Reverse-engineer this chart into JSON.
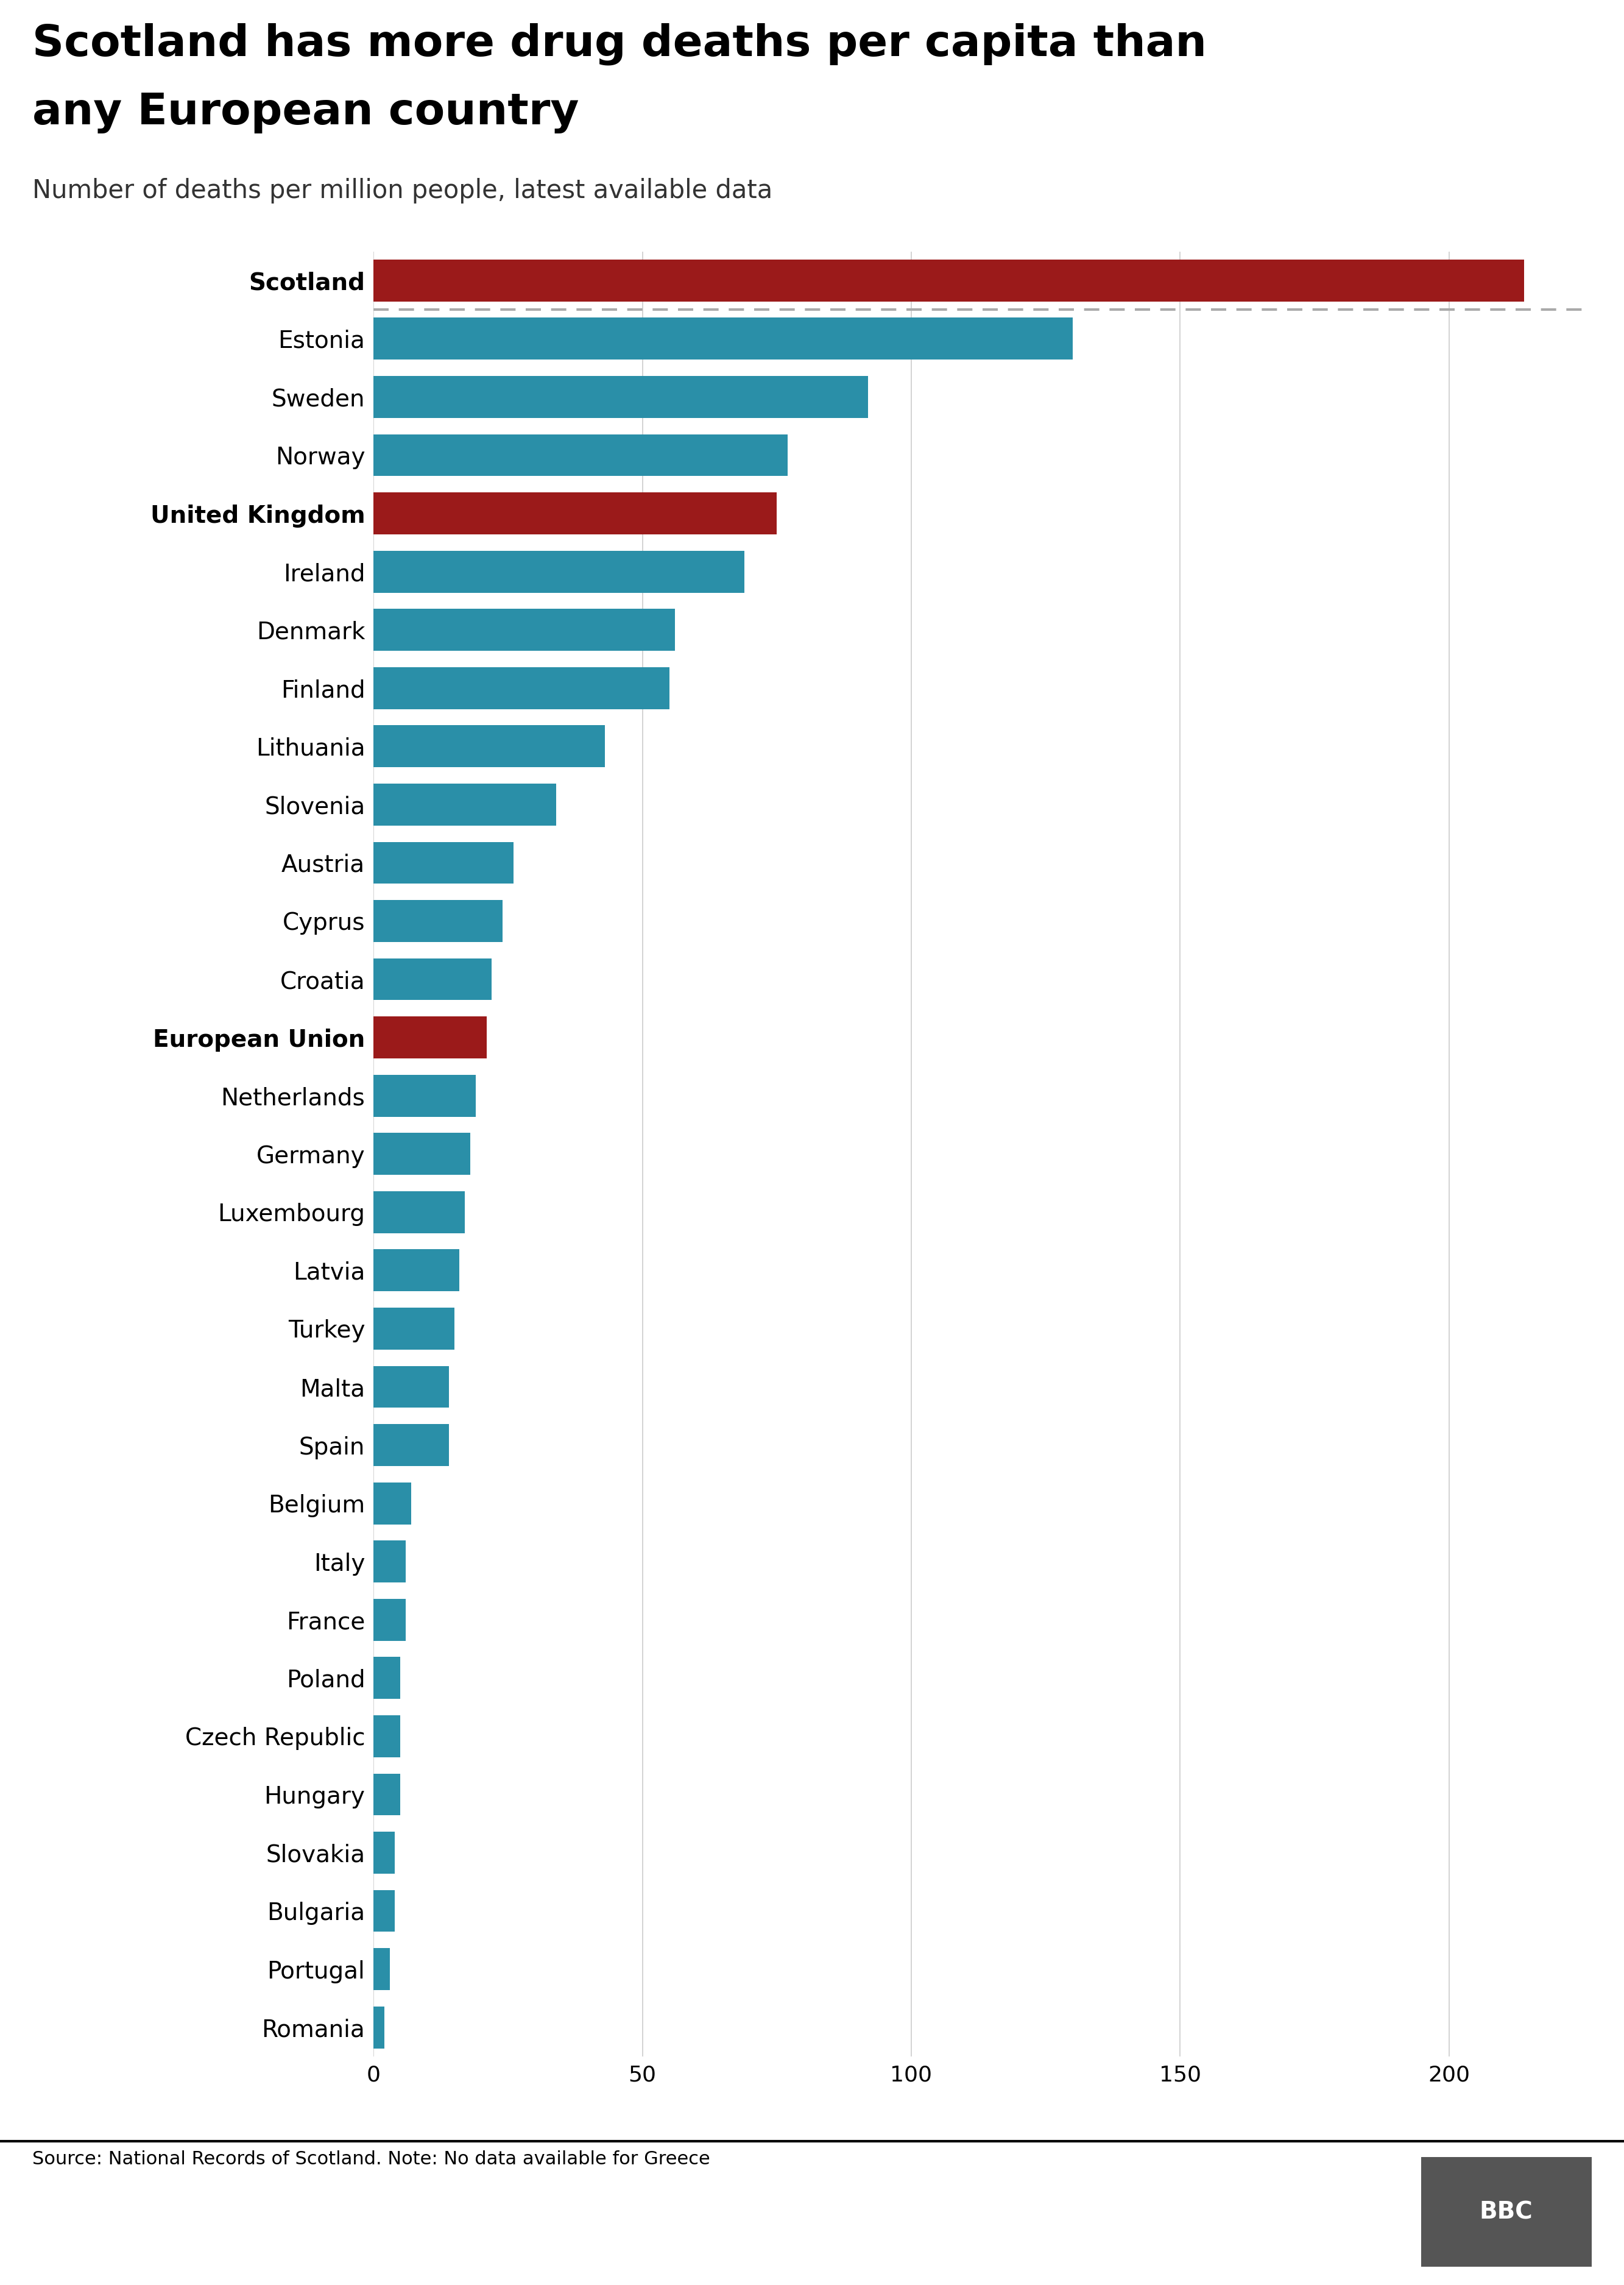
{
  "title_line1": "Scotland has more drug deaths per capita than",
  "title_line2": "any European country",
  "subtitle": "Number of deaths per million people, latest available data",
  "source": "Source: National Records of Scotland. Note: No data available for Greece",
  "categories": [
    "Romania",
    "Portugal",
    "Bulgaria",
    "Slovakia",
    "Hungary",
    "Czech Republic",
    "Poland",
    "France",
    "Italy",
    "Belgium",
    "Spain",
    "Malta",
    "Turkey",
    "Latvia",
    "Luxembourg",
    "Germany",
    "Netherlands",
    "European Union",
    "Croatia",
    "Cyprus",
    "Austria",
    "Slovenia",
    "Lithuania",
    "Finland",
    "Denmark",
    "Ireland",
    "United Kingdom",
    "Norway",
    "Sweden",
    "Estonia",
    "Scotland"
  ],
  "values": [
    2,
    3,
    4,
    4,
    5,
    5,
    5,
    6,
    6,
    7,
    14,
    14,
    15,
    16,
    17,
    18,
    19,
    21,
    22,
    24,
    26,
    34,
    43,
    55,
    56,
    69,
    75,
    77,
    92,
    130,
    214
  ],
  "colors": [
    "#2a8fa8",
    "#2a8fa8",
    "#2a8fa8",
    "#2a8fa8",
    "#2a8fa8",
    "#2a8fa8",
    "#2a8fa8",
    "#2a8fa8",
    "#2a8fa8",
    "#2a8fa8",
    "#2a8fa8",
    "#2a8fa8",
    "#2a8fa8",
    "#2a8fa8",
    "#2a8fa8",
    "#2a8fa8",
    "#2a8fa8",
    "#9b1a1a",
    "#2a8fa8",
    "#2a8fa8",
    "#2a8fa8",
    "#2a8fa8",
    "#2a8fa8",
    "#2a8fa8",
    "#2a8fa8",
    "#2a8fa8",
    "#9b1a1a",
    "#2a8fa8",
    "#2a8fa8",
    "#2a8fa8",
    "#9b1a1a"
  ],
  "bold_labels": [
    "Scotland",
    "United Kingdom",
    "European Union"
  ],
  "xlim": [
    0,
    225
  ],
  "xticks": [
    0,
    50,
    100,
    150,
    200
  ],
  "background_color": "#ffffff",
  "bar_color_teal": "#2a8fa8",
  "bar_color_red": "#9b1a1a",
  "dashed_line_color": "#aaaaaa",
  "grid_color": "#cccccc",
  "separator_line_color": "#000000",
  "title_fontsize": 52,
  "subtitle_fontsize": 30,
  "label_fontsize": 28,
  "tick_fontsize": 26,
  "source_fontsize": 22
}
